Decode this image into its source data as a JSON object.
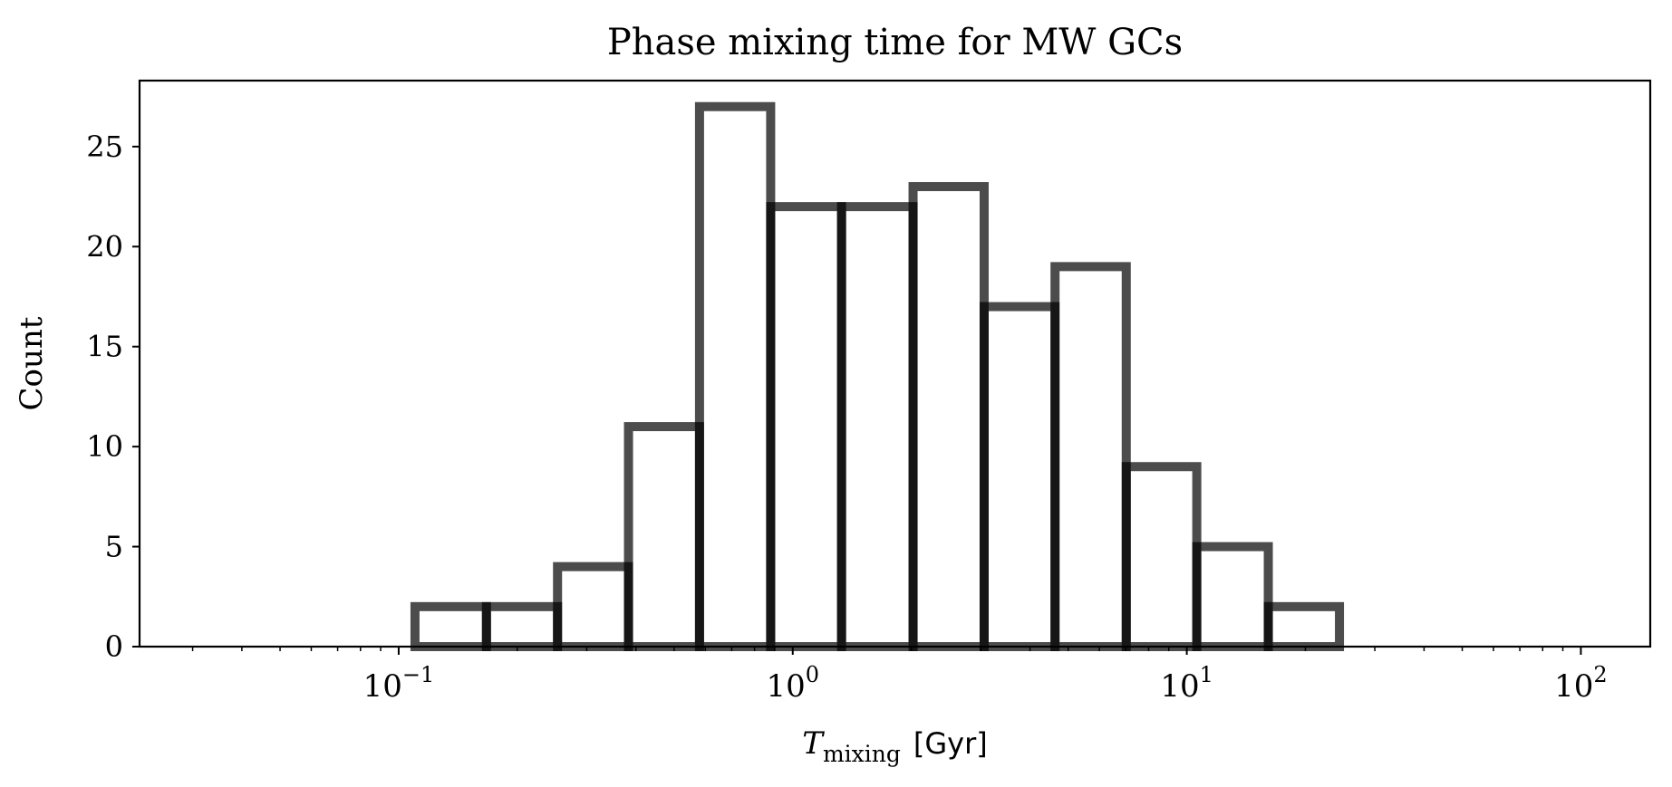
{
  "chart_data": {
    "type": "bar",
    "title": "Phase mixing time for MW GCs",
    "xlabel": {
      "symbol": "T",
      "subscript": "mixing",
      "unit": "[Gyr]"
    },
    "ylabel": "Count",
    "xscale": "log",
    "xlim": [
      0.022,
      150
    ],
    "ylim": [
      0,
      28.3
    ],
    "xticks": [
      {
        "value": 0.1,
        "base": "10",
        "exp": "−1"
      },
      {
        "value": 1,
        "base": "10",
        "exp": "0"
      },
      {
        "value": 10,
        "base": "10",
        "exp": "1"
      },
      {
        "value": 100,
        "base": "10",
        "exp": "2"
      }
    ],
    "yticks": [
      0,
      5,
      10,
      15,
      20,
      25
    ],
    "bin_edges": [
      0.0316,
      0.0479,
      0.0726,
      0.11,
      0.167,
      0.253,
      0.383,
      0.58,
      0.879,
      1.33,
      2.02,
      3.06,
      4.63,
      7.02,
      10.6,
      16.1,
      24.4,
      37.0,
      56.1,
      85.0,
      100.0
    ],
    "bin_edges_note": "approximate log-spaced edges read from the plot",
    "histogram_bins": [
      {
        "left": 0.0316,
        "right": 0.11,
        "count": 0
      },
      {
        "left": 0.11,
        "right": 0.167,
        "count": 2
      },
      {
        "left": 0.167,
        "right": 0.253,
        "count": 2
      },
      {
        "left": 0.253,
        "right": 0.383,
        "count": 4
      },
      {
        "left": 0.383,
        "right": 0.58,
        "count": 11
      },
      {
        "left": 0.58,
        "right": 0.879,
        "count": 27
      },
      {
        "left": 0.879,
        "right": 1.33,
        "count": 22
      },
      {
        "left": 1.33,
        "right": 2.02,
        "count": 22
      },
      {
        "left": 2.02,
        "right": 3.06,
        "count": 23
      },
      {
        "left": 3.06,
        "right": 4.63,
        "count": 17
      },
      {
        "left": 4.63,
        "right": 7.02,
        "count": 19
      },
      {
        "left": 7.02,
        "right": 10.6,
        "count": 9
      },
      {
        "left": 10.6,
        "right": 16.1,
        "count": 5
      },
      {
        "left": 16.1,
        "right": 24.4,
        "count": 2
      },
      {
        "left": 24.4,
        "right": 100.0,
        "count": 0
      }
    ],
    "style": {
      "edgecolor": "#000000",
      "fill": "none",
      "opacity": 0.7
    },
    "grid": false,
    "legend": "none"
  }
}
